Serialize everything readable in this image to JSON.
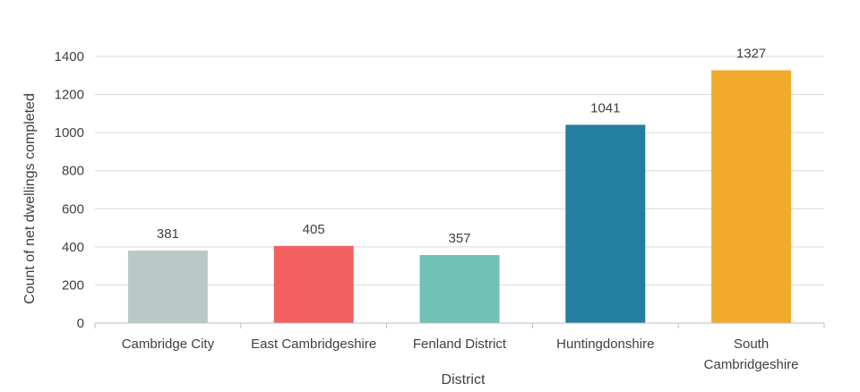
{
  "chart_data": {
    "type": "bar",
    "categories": [
      "Cambridge City",
      "East Cambridgeshire",
      "Fenland District",
      "Huntingdonshire",
      "South Cambridgeshire"
    ],
    "category_lines": [
      [
        "Cambridge City"
      ],
      [
        "East Cambridgeshire"
      ],
      [
        "Fenland District"
      ],
      [
        "Huntingdonshire"
      ],
      [
        "South",
        "Cambridgeshire"
      ]
    ],
    "values": [
      381,
      405,
      357,
      1041,
      1327
    ],
    "colors": [
      "#bbc8c8",
      "#f26060",
      "#6fc2b4",
      "#247ea0",
      "#f2aa2c"
    ],
    "title": "",
    "xlabel": "District",
    "ylabel": "Count of net dwellings completed",
    "ylim": [
      0,
      1400
    ],
    "yticks": [
      0,
      200,
      400,
      600,
      800,
      1000,
      1200,
      1400
    ],
    "grid": true,
    "legend": "none"
  }
}
